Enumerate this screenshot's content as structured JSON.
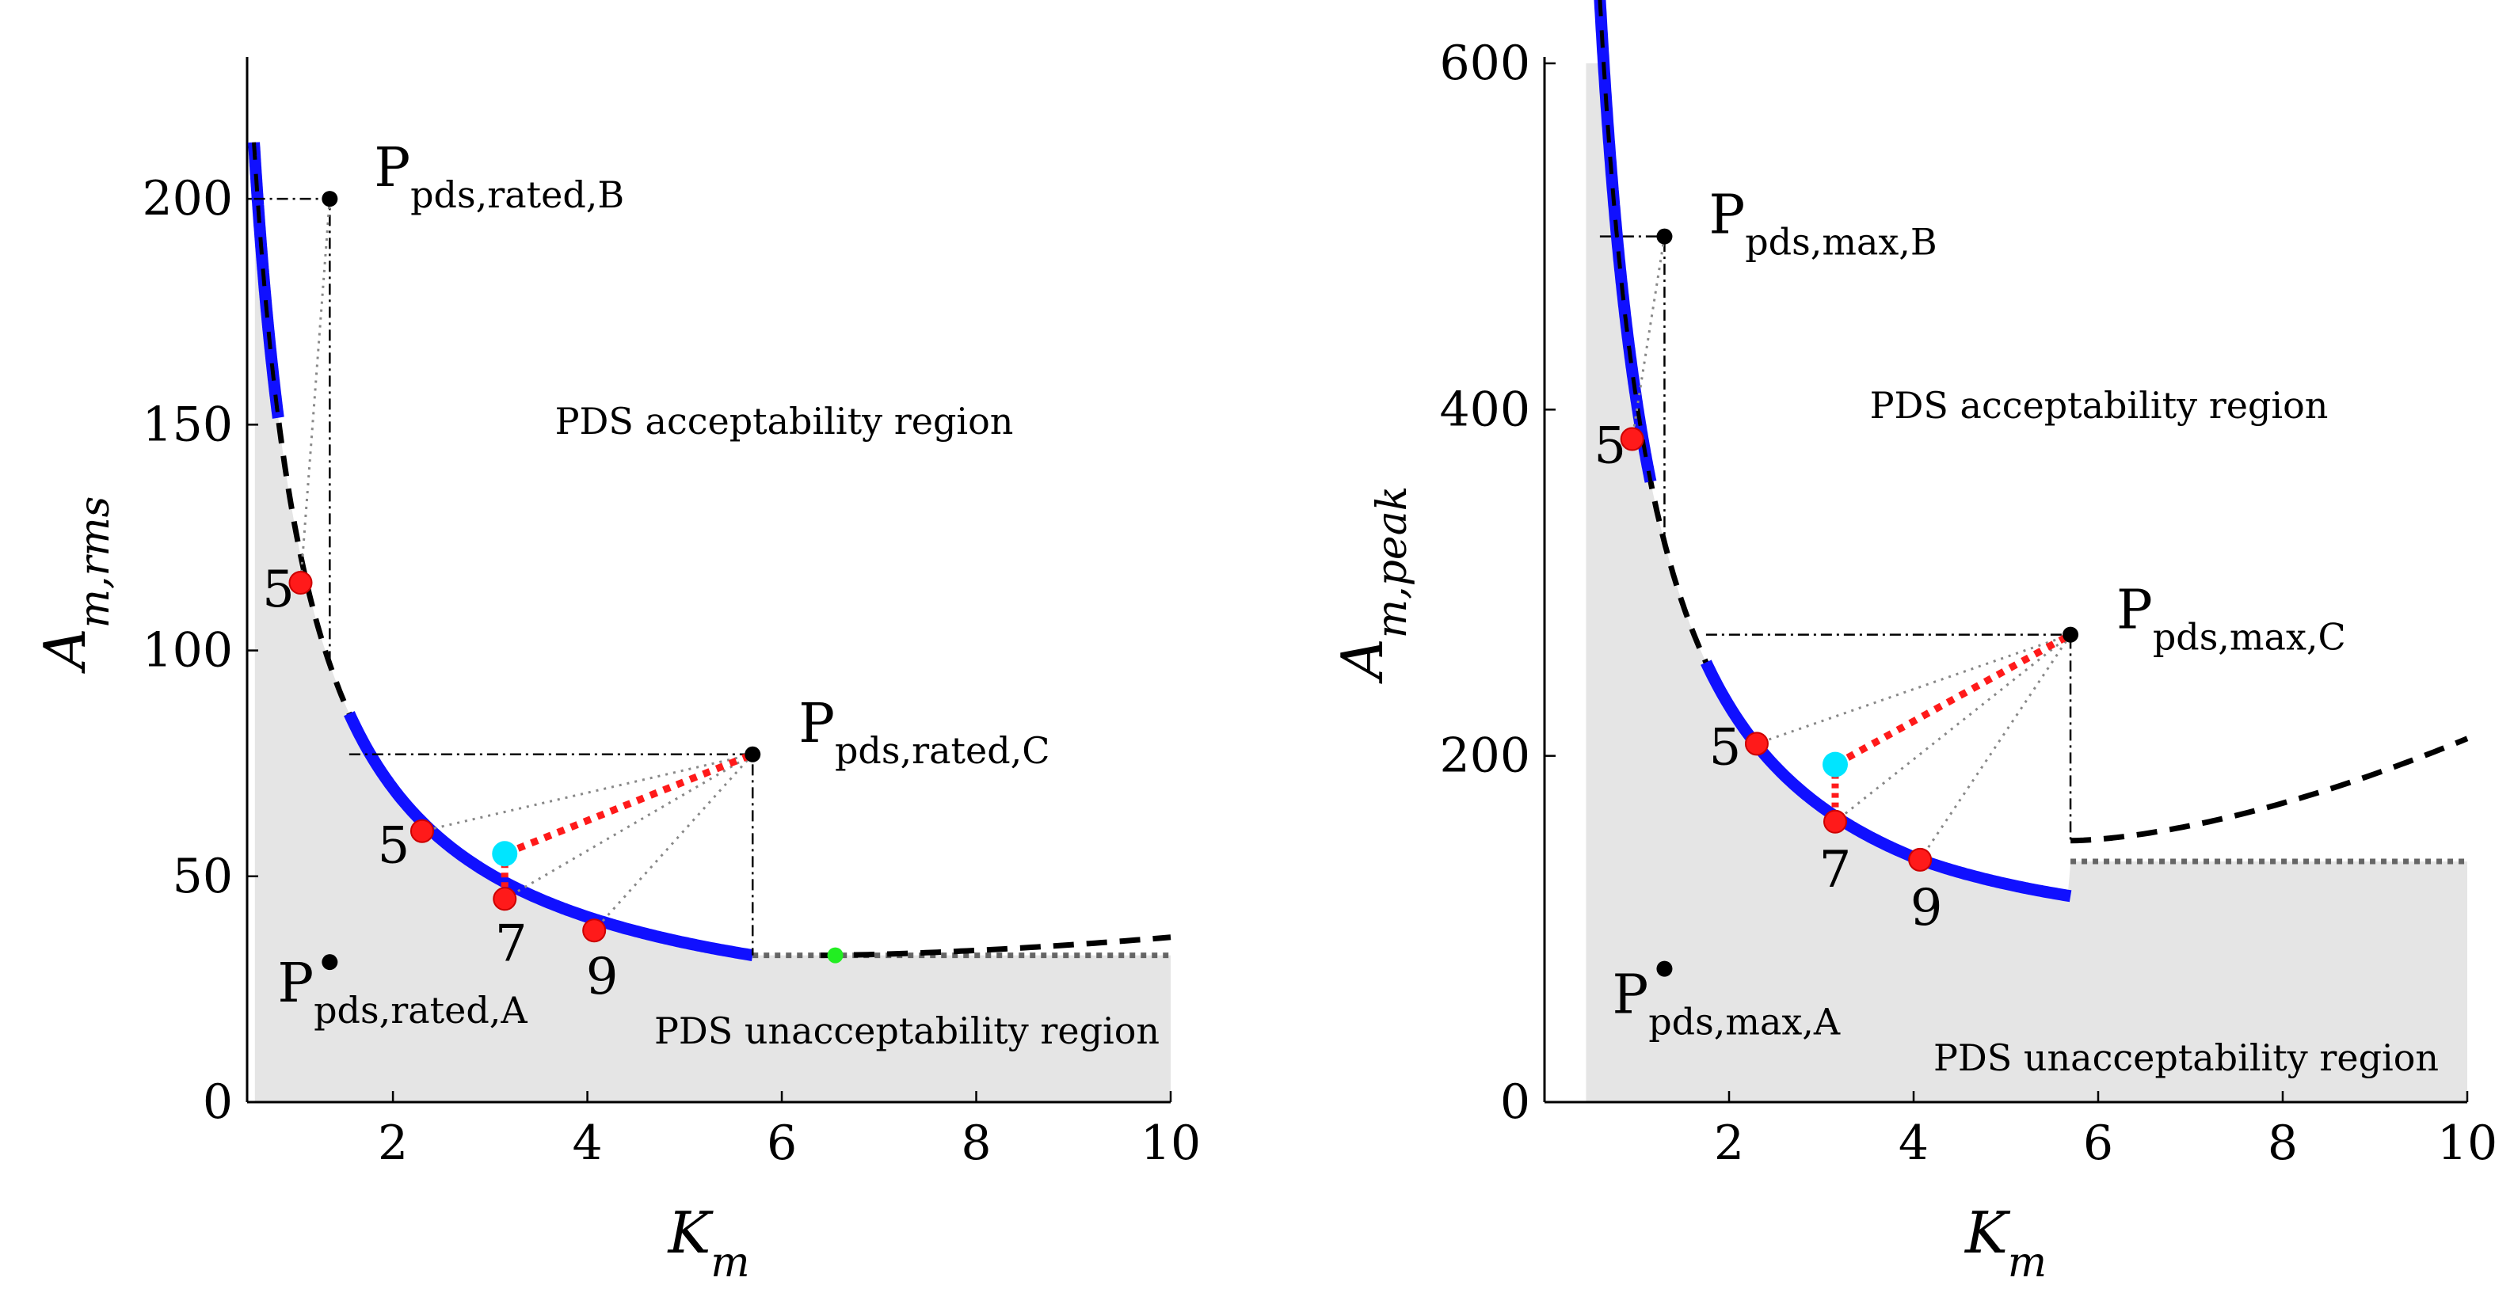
{
  "chart_data": [
    {
      "type": "line",
      "xlabel": "K",
      "xlabel_sub": "m",
      "ylabel": "A",
      "ylabel_sub": "m,rms",
      "xlim": [
        0.5,
        10
      ],
      "ylim": [
        0,
        230
      ],
      "xticks": [
        2,
        4,
        6,
        8,
        10
      ],
      "yticks": [
        0,
        50,
        100,
        150,
        200
      ],
      "grid": false,
      "curves": {
        "constant": 114,
        "acceptable_range": [
          0.57,
          5.7
        ],
        "blue_segments": [
          [
            0.57,
            0.82
          ],
          [
            1.55,
            5.7
          ]
        ],
        "rising_start": 6.4,
        "rising_end_value": 36.5
      },
      "floor_value": 32.5,
      "points": [
        {
          "label": "P",
          "sub": "pds,rated,B",
          "x": 1.35,
          "y": 200,
          "color": "#000000"
        },
        {
          "label": "P",
          "sub": "pds,rated,C",
          "x": 5.7,
          "y": 77,
          "color": "#000000"
        },
        {
          "label": "P",
          "sub": "pds,rated,A",
          "x": 1.35,
          "y": 31,
          "color": "#000000"
        }
      ],
      "markers": [
        {
          "label": "5",
          "x": 1.05,
          "y": 115,
          "color": "#ff1a1a"
        },
        {
          "label": "5",
          "x": 2.3,
          "y": 60,
          "color": "#ff1a1a"
        },
        {
          "label": "7",
          "x": 3.15,
          "y": 45,
          "color": "#ff1a1a"
        },
        {
          "label": "9",
          "x": 4.07,
          "y": 38,
          "color": "#ff1a1a"
        }
      ],
      "cyan_point": {
        "x": 3.15,
        "y": 55
      },
      "green_point": {
        "x": 6.55,
        "y": 32.5
      },
      "region_labels": {
        "acceptable": "PDS acceptability region",
        "unacceptable": "PDS unacceptability region"
      }
    },
    {
      "type": "line",
      "xlabel": "K",
      "xlabel_sub": "m",
      "ylabel": "A",
      "ylabel_sub": "m,peak",
      "xlim": [
        0,
        10
      ],
      "ylim": [
        0,
        600
      ],
      "xticks": [
        2,
        4,
        6,
        8,
        10
      ],
      "yticks": [
        0,
        200,
        400,
        600
      ],
      "grid": false,
      "curves": {
        "center_x": 4.2,
        "min_value": 139,
        "a": 26.5,
        "blue_segments": [
          [
            0.6,
            1.15
          ],
          [
            1.75,
            5.7
          ]
        ],
        "rising_start": 5.7,
        "rising_end_value": 210
      },
      "floor_value": 139,
      "points": [
        {
          "label": "P",
          "sub": "pds,max,B",
          "x": 1.3,
          "y": 500,
          "color": "#000000"
        },
        {
          "label": "P",
          "sub": "pds,max,C",
          "x": 5.7,
          "y": 270,
          "color": "#000000"
        },
        {
          "label": "P",
          "sub": "pds,max,A",
          "x": 1.3,
          "y": 77,
          "color": "#000000"
        }
      ],
      "markers": [
        {
          "label": "5",
          "x": 0.95,
          "y": 383,
          "color": "#ff1a1a"
        },
        {
          "label": "5",
          "x": 2.3,
          "y": 207,
          "color": "#ff1a1a"
        },
        {
          "label": "7",
          "x": 3.15,
          "y": 162,
          "color": "#ff1a1a"
        },
        {
          "label": "9",
          "x": 4.07,
          "y": 140,
          "color": "#ff1a1a"
        }
      ],
      "cyan_point": {
        "x": 3.15,
        "y": 195
      },
      "region_labels": {
        "acceptable": "PDS acceptability region",
        "unacceptable": "PDS unacceptability region"
      }
    }
  ]
}
